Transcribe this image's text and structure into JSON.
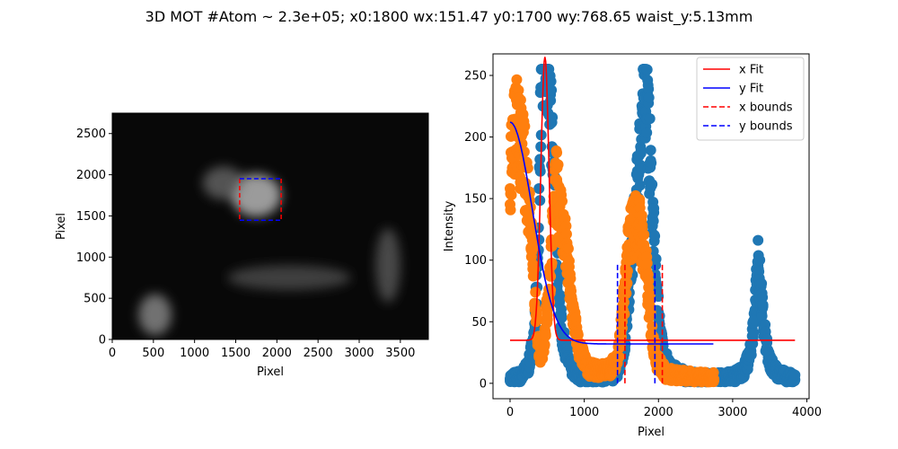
{
  "figure": {
    "suptitle": "3D MOT #Atom ~ 2.3e+05; x0:1800 wx:151.47 y0:1700 wy:768.65 waist_y:5.13mm"
  },
  "chart_data": [
    {
      "type": "heatmap",
      "xlabel": "Pixel",
      "ylabel": "Pixel",
      "xlim": [
        0,
        3840
      ],
      "ylim": [
        0,
        2748
      ],
      "xticks": [
        0,
        500,
        1000,
        1500,
        2000,
        2500,
        3000,
        3500
      ],
      "yticks": [
        0,
        500,
        1000,
        1500,
        2000,
        2500
      ],
      "colormap": "gray",
      "background_color": "#080808",
      "features": [
        {
          "kind": "blob",
          "cx": 1750,
          "cy": 1750,
          "rx": 300,
          "ry": 260,
          "intensity": 0.75
        },
        {
          "kind": "blob",
          "cx": 1350,
          "cy": 1900,
          "rx": 250,
          "ry": 200,
          "intensity": 0.4
        },
        {
          "kind": "streak",
          "cx": 2150,
          "cy": 750,
          "rx": 750,
          "ry": 150,
          "intensity": 0.3
        },
        {
          "kind": "streak",
          "cx": 520,
          "cy": 300,
          "rx": 200,
          "ry": 250,
          "intensity": 0.55
        },
        {
          "kind": "streak",
          "cx": 3350,
          "cy": 900,
          "rx": 150,
          "ry": 450,
          "intensity": 0.35
        }
      ],
      "roi": {
        "x_bounds": [
          1548,
          2052
        ],
        "y_bounds": [
          1448,
          1952
        ],
        "x_color": "#ff0000",
        "y_color": "#0000ff"
      }
    },
    {
      "type": "scatter",
      "xlabel": "Pixel",
      "ylabel": "Intensity",
      "xlim": [
        -230,
        4030
      ],
      "ylim": [
        -12.5,
        267.5
      ],
      "xticks": [
        0,
        1000,
        2000,
        3000,
        4000
      ],
      "yticks": [
        0,
        50,
        100,
        150,
        200,
        250
      ],
      "legend_position": "top-right",
      "series": [
        {
          "kind": "scatter",
          "color": "#1f77b4",
          "x_range": [
            0,
            3840
          ],
          "profile": [
            [
              0,
              4
            ],
            [
              150,
              6
            ],
            [
              250,
              14
            ],
            [
              330,
              40
            ],
            [
              380,
              110
            ],
            [
              400,
              175
            ],
            [
              420,
              245
            ],
            [
              480,
              255
            ],
            [
              520,
              255
            ],
            [
              560,
              215
            ],
            [
              600,
              150
            ],
            [
              640,
              90
            ],
            [
              700,
              40
            ],
            [
              800,
              15
            ],
            [
              900,
              6
            ],
            [
              1300,
              5
            ],
            [
              1450,
              8
            ],
            [
              1550,
              35
            ],
            [
              1620,
              90
            ],
            [
              1680,
              130
            ],
            [
              1720,
              160
            ],
            [
              1760,
              200
            ],
            [
              1800,
              235
            ],
            [
              1830,
              245
            ],
            [
              1850,
              230
            ],
            [
              1880,
              185
            ],
            [
              1920,
              140
            ],
            [
              1960,
              90
            ],
            [
              2000,
              55
            ],
            [
              2050,
              30
            ],
            [
              2150,
              12
            ],
            [
              2400,
              5
            ],
            [
              2700,
              4
            ],
            [
              3000,
              5
            ],
            [
              3150,
              10
            ],
            [
              3230,
              22
            ],
            [
              3280,
              45
            ],
            [
              3320,
              80
            ],
            [
              3340,
              100
            ],
            [
              3370,
              80
            ],
            [
              3420,
              45
            ],
            [
              3480,
              20
            ],
            [
              3600,
              8
            ],
            [
              3840,
              3
            ]
          ]
        },
        {
          "kind": "scatter",
          "color": "#ff7f0e",
          "x_range": [
            0,
            2748
          ],
          "profile": [
            [
              0,
              170
            ],
            [
              30,
              190
            ],
            [
              90,
              210
            ],
            [
              140,
              195
            ],
            [
              200,
              175
            ],
            [
              250,
              150
            ],
            [
              300,
              120
            ],
            [
              330,
              75
            ],
            [
              370,
              38
            ],
            [
              420,
              18
            ],
            [
              470,
              40
            ],
            [
              530,
              80
            ],
            [
              580,
              130
            ],
            [
              620,
              160
            ],
            [
              680,
              140
            ],
            [
              760,
              105
            ],
            [
              840,
              60
            ],
            [
              930,
              28
            ],
            [
              1050,
              12
            ],
            [
              1200,
              10
            ],
            [
              1350,
              12
            ],
            [
              1450,
              20
            ],
            [
              1520,
              55
            ],
            [
              1570,
              95
            ],
            [
              1620,
              120
            ],
            [
              1680,
              130
            ],
            [
              1740,
              128
            ],
            [
              1800,
              110
            ],
            [
              1860,
              75
            ],
            [
              1910,
              40
            ],
            [
              1980,
              18
            ],
            [
              2100,
              8
            ],
            [
              2300,
              6
            ],
            [
              2500,
              5
            ],
            [
              2748,
              4
            ]
          ]
        }
      ],
      "lines": [
        {
          "name": "x Fit",
          "color": "#ff0000",
          "style": "solid",
          "x_range": [
            0,
            3840
          ],
          "offset": 35,
          "amplitude": 230,
          "center": 470,
          "sigma": 55
        },
        {
          "name": "y Fit",
          "color": "#0000ff",
          "style": "solid",
          "x_range": [
            0,
            2748
          ],
          "offset": 32,
          "amplitude": 180,
          "center": 0,
          "sigma": 300
        }
      ],
      "bounds": [
        {
          "name": "x bounds",
          "color": "#ff0000",
          "style": "dashed",
          "x": [
            1548,
            2052
          ],
          "y_range": [
            0,
            98
          ]
        },
        {
          "name": "y bounds",
          "color": "#0000ff",
          "style": "dashed",
          "x": [
            1448,
            1952
          ],
          "y_range": [
            0,
            98
          ]
        }
      ],
      "legend": [
        "x Fit",
        "y Fit",
        "x bounds",
        "y bounds"
      ]
    }
  ]
}
